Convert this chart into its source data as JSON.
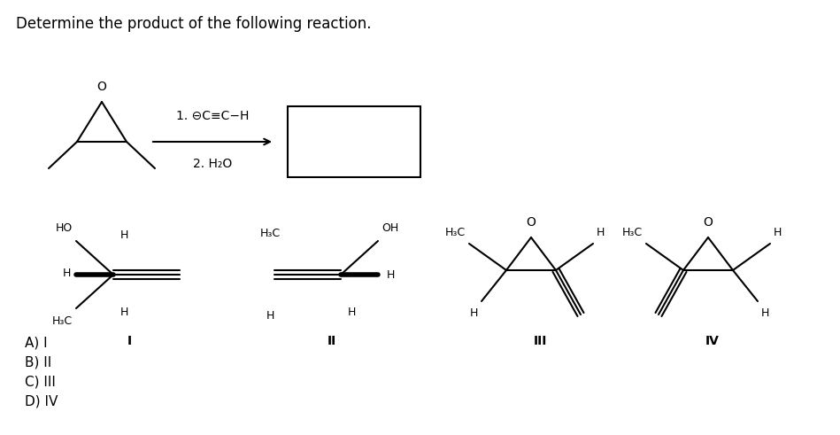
{
  "title": "Determine the product of the following reaction.",
  "title_fontsize": 12,
  "background_color": "#ffffff",
  "text_color": "#000000",
  "choices": [
    "A) I",
    "B) II",
    "C) III",
    "D) IV"
  ],
  "reagent_line1": "1. ⊖C≡C−H",
  "reagent_line2": "2. H₂O"
}
